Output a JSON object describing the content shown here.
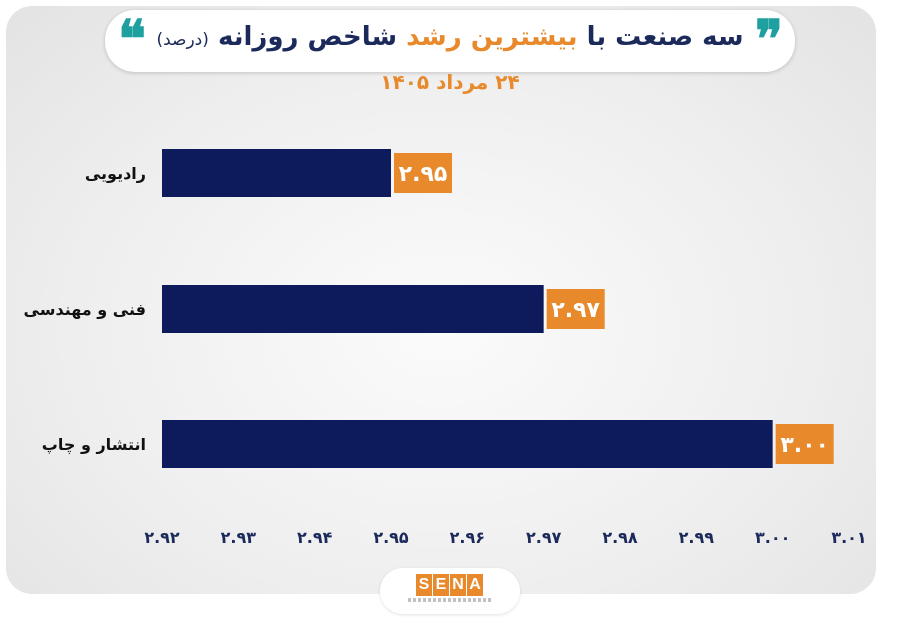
{
  "header": {
    "title_part1": "سه صنعت با",
    "title_highlight": "بیشترین رشد",
    "title_part2": "شاخص روزانه",
    "title_small": "(درصد)",
    "subtitle": "۲۴ مرداد ۱۴۰۵"
  },
  "logo": {
    "letters": [
      "S",
      "E",
      "N",
      "A"
    ]
  },
  "colors": {
    "bar": "#0d1a5c",
    "label_bg": "#e8892c",
    "accent": "#e8892c",
    "quote": "#1fa0a0"
  },
  "chart_data": {
    "type": "bar",
    "orientation": "horizontal",
    "categories": [
      "رادیویی",
      "فنی و مهندسی",
      "انتشار و چاپ"
    ],
    "values": [
      2.95,
      2.97,
      3.0
    ],
    "value_labels": [
      "۲.۹۵",
      "۲.۹۷",
      "۳.۰۰"
    ],
    "xlim": [
      2.92,
      3.01
    ],
    "x_ticks": [
      2.92,
      2.93,
      2.94,
      2.95,
      2.96,
      2.97,
      2.98,
      2.99,
      3.0,
      3.01
    ],
    "x_tick_labels": [
      "۲.۹۲",
      "۲.۹۳",
      "۲.۹۴",
      "۲.۹۵",
      "۲.۹۶",
      "۲.۹۷",
      "۲.۹۸",
      "۲.۹۹",
      "۳.۰۰",
      "۳.۰۱"
    ],
    "grid": false,
    "legend": "none",
    "title": "سه صنعت با بیشترین رشد شاخص روزانه (درصد)",
    "subtitle": "۲۴ مرداد ۱۴۰۵"
  }
}
